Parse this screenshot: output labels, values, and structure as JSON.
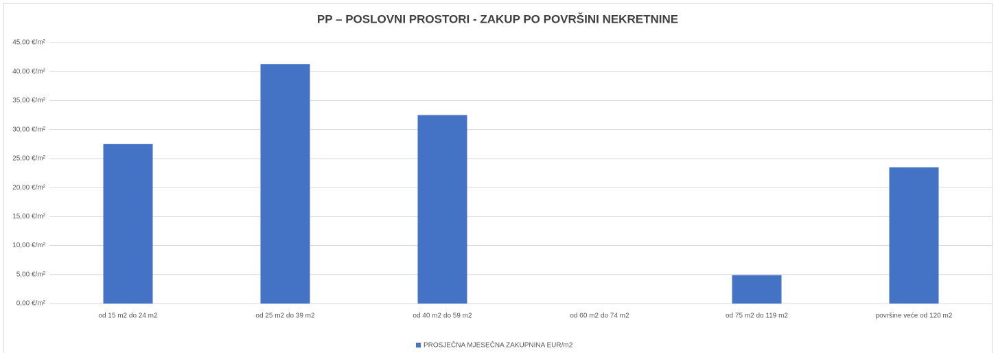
{
  "chart_data": {
    "type": "bar",
    "title": "PP – POSLOVNI PROSTORI - ZAKUP PO POVRŠINI NEKRETNINE",
    "categories": [
      "od 15 m2 do 24 m2",
      "od 25 m2 do 39 m2",
      "od 40 m2 do 59 m2",
      "od 60 m2 do 74 m2",
      "od 75 m2 do 119 m2",
      "površine veće od 120 m2"
    ],
    "series": [
      {
        "name": "PROSJEČNA MJESEČNA ZAKUPNINA EUR/m2",
        "color": "#4472c4",
        "values": [
          27.5,
          41.3,
          32.5,
          0,
          4.9,
          23.5
        ]
      }
    ],
    "ylim": [
      0,
      45
    ],
    "yticks": [
      {
        "value": 0,
        "label": "0,00 €/m²"
      },
      {
        "value": 5,
        "label": "5,00 €/m²"
      },
      {
        "value": 10,
        "label": "10,00 €/m²"
      },
      {
        "value": 15,
        "label": "15,00 €/m²"
      },
      {
        "value": 20,
        "label": "20,00 €/m²"
      },
      {
        "value": 25,
        "label": "25,00 €/m²"
      },
      {
        "value": 30,
        "label": "30,00 €/m²"
      },
      {
        "value": 35,
        "label": "35,00 €/m²"
      },
      {
        "value": 40,
        "label": "40,00 €/m²"
      },
      {
        "value": 45,
        "label": "45,00 €/m²"
      }
    ],
    "grid": true,
    "legend": "bottom"
  }
}
